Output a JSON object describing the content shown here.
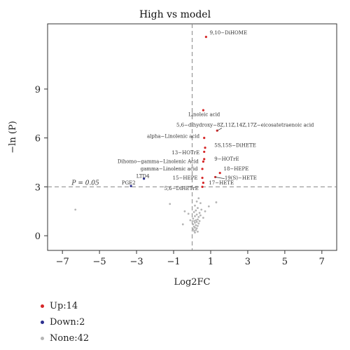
{
  "chart_data": {
    "type": "scatter",
    "title": "High vs model",
    "xlabel": "Log2FC",
    "ylabel": "−ln (P)",
    "xlim": [
      -7.8,
      7.8
    ],
    "ylim": [
      -0.9,
      13.0
    ],
    "xticks": [
      -7,
      -5,
      -3,
      -1,
      1,
      3,
      5,
      7
    ],
    "xtick_labels": [
      "−7",
      "−5",
      "−3",
      "−1",
      "1",
      "3",
      "5",
      "7"
    ],
    "yticks": [
      0,
      3,
      6,
      9
    ],
    "ytick_labels": [
      "0",
      "3",
      "6",
      "9"
    ],
    "thresholds": {
      "x": 0,
      "y": 3.0,
      "label": "P = 0.05"
    },
    "colors": {
      "up": "#d62728",
      "down": "#2b2f8f",
      "none": "#b5b5b5"
    },
    "series": [
      {
        "name": "Up:14",
        "key": "up",
        "points": [
          {
            "x": 0.75,
            "y": 12.2,
            "label": "9,10−DiHOME"
          },
          {
            "x": 0.6,
            "y": 7.7,
            "label": "Linoleic acid"
          },
          {
            "x": 1.35,
            "y": 6.45,
            "label": "5,6−dihydroxy−8Z,11Z,14Z,17Z−eicosatetraenoic acid"
          },
          {
            "x": 0.65,
            "y": 6.0,
            "label": "alpha−Linolenic acid"
          },
          {
            "x": 0.7,
            "y": 5.4,
            "label": "5S,15S−DiHETE"
          },
          {
            "x": 0.65,
            "y": 5.15,
            "label": "13−HOTrE"
          },
          {
            "x": 0.6,
            "y": 4.55,
            "label": "Dihomo−gamma−Linolenic Acid"
          },
          {
            "x": 0.65,
            "y": 4.7,
            "label": "9−HOTrE"
          },
          {
            "x": 0.55,
            "y": 4.1,
            "label": "gamma−Linolenic acid"
          },
          {
            "x": 1.5,
            "y": 3.85,
            "label": "18−HEPE"
          },
          {
            "x": 1.25,
            "y": 3.6,
            "label": "19(S)−HETE"
          },
          {
            "x": 0.55,
            "y": 3.55,
            "label": "15−HEPE"
          },
          {
            "x": 0.6,
            "y": 3.25,
            "label": "17−HETE"
          },
          {
            "x": 0.55,
            "y": 3.0,
            "label": "5,6−DiHETrE"
          }
        ]
      },
      {
        "name": "Down:2",
        "key": "down",
        "points": [
          {
            "x": -2.6,
            "y": 3.5,
            "label": "LTD4"
          },
          {
            "x": -3.3,
            "y": 3.05,
            "label": "PGE2"
          }
        ]
      },
      {
        "name": "None:42",
        "key": "none",
        "points": [
          {
            "x": -6.3,
            "y": 1.6
          },
          {
            "x": -1.2,
            "y": 1.95
          },
          {
            "x": -0.4,
            "y": 1.5
          },
          {
            "x": -0.5,
            "y": 0.7
          },
          {
            "x": 1.3,
            "y": 2.05
          },
          {
            "x": 0.9,
            "y": 1.8
          },
          {
            "x": 0.35,
            "y": 2.3
          },
          {
            "x": 0.25,
            "y": 2.1
          },
          {
            "x": 0.45,
            "y": 2.0
          },
          {
            "x": 0.15,
            "y": 1.85
          },
          {
            "x": 0.3,
            "y": 1.7
          },
          {
            "x": 0.5,
            "y": 1.6
          },
          {
            "x": 0.2,
            "y": 1.55
          },
          {
            "x": 0.1,
            "y": 1.45
          },
          {
            "x": 0.4,
            "y": 1.4
          },
          {
            "x": 0.25,
            "y": 1.3
          },
          {
            "x": 0.15,
            "y": 1.2
          },
          {
            "x": 0.35,
            "y": 1.15
          },
          {
            "x": 0.05,
            "y": 1.05
          },
          {
            "x": 0.3,
            "y": 1.0
          },
          {
            "x": 0.2,
            "y": 0.95
          },
          {
            "x": 0.1,
            "y": 0.9
          },
          {
            "x": 0.25,
            "y": 0.85
          },
          {
            "x": 0.15,
            "y": 0.8
          },
          {
            "x": 0.35,
            "y": 0.75
          },
          {
            "x": 0.05,
            "y": 0.7
          },
          {
            "x": 0.2,
            "y": 0.65
          },
          {
            "x": 0.3,
            "y": 0.6
          },
          {
            "x": 0.1,
            "y": 0.55
          },
          {
            "x": 0.15,
            "y": 0.5
          },
          {
            "x": 0.25,
            "y": 0.45
          },
          {
            "x": 0.05,
            "y": 0.4
          },
          {
            "x": 0.2,
            "y": 0.35
          },
          {
            "x": 0.1,
            "y": 0.3
          },
          {
            "x": 0.3,
            "y": 0.25
          },
          {
            "x": 0.15,
            "y": 0.2
          },
          {
            "x": 0.4,
            "y": 0.9
          },
          {
            "x": 0.45,
            "y": 1.25
          },
          {
            "x": 0.6,
            "y": 1.1
          },
          {
            "x": -0.2,
            "y": 1.35
          },
          {
            "x": -0.1,
            "y": 0.95
          },
          {
            "x": 0.7,
            "y": 1.5
          }
        ]
      }
    ],
    "legend": {
      "position": "bottom-left",
      "items": [
        "Up:14",
        "Down:2",
        "None:42"
      ]
    }
  }
}
